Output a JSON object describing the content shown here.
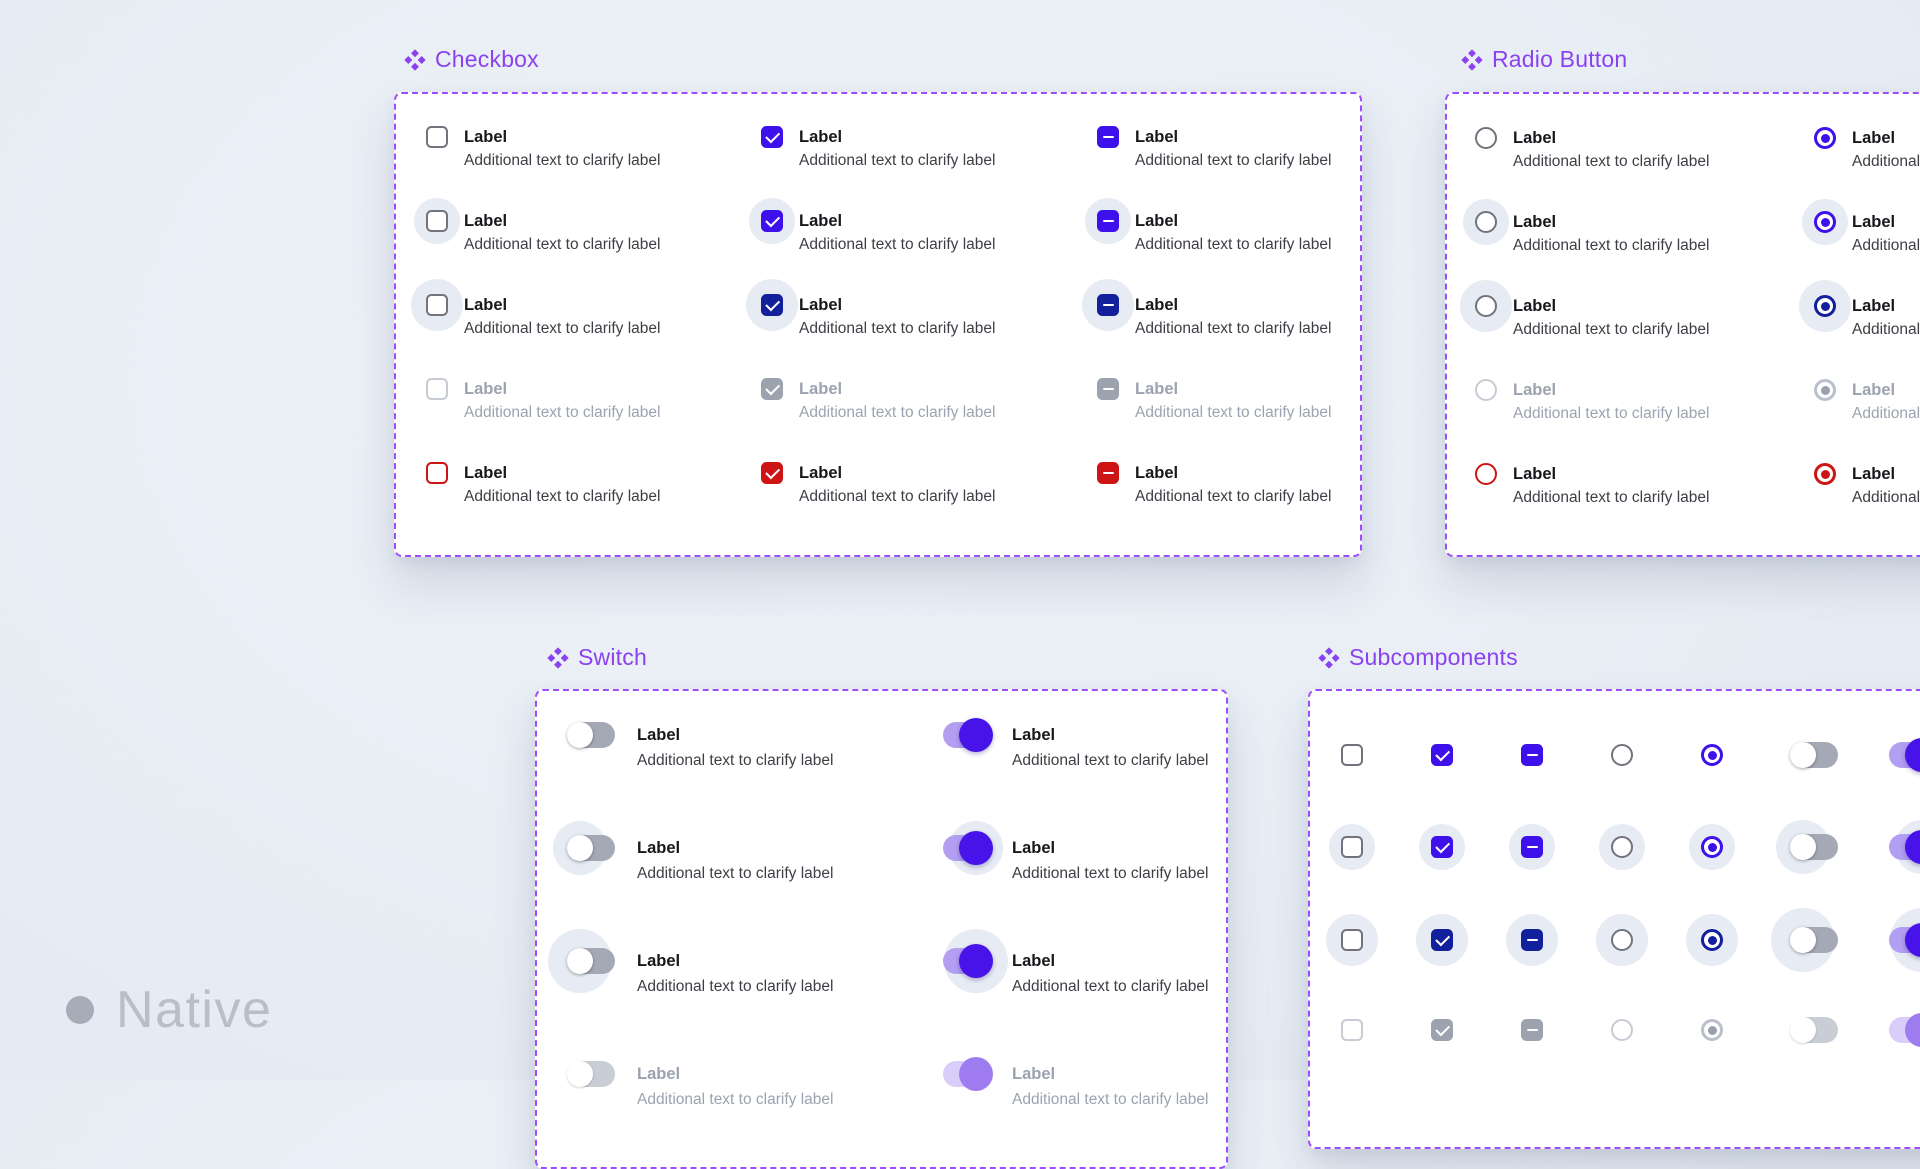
{
  "colors": {
    "bg": "#E9EEF5",
    "card": "#FFFFFF",
    "accent-purple": "#8A42F0",
    "dash-purple": "#9B4DFF",
    "primary": "#3D10EC",
    "primary-pressed": "#12209C",
    "error": "#CE1515",
    "halo": "#E7EBF4",
    "control-border": "#73737D",
    "disabled-border": "#C7CBD4",
    "disabled-fill": "#9CA3AF",
    "text": "#17171C",
    "text-secondary": "#3E3E46",
    "text-disabled": "#9CA3AF",
    "track-off": "#A4A9B5",
    "track-on": "#B29FF1",
    "thumb-on": "#4713E9",
    "track-off-disabled": "#C9CDD5",
    "track-on-disabled": "#D9CDF9",
    "thumb-on-disabled": "#9E7CEF",
    "watermark-dot": "#A7ACB9",
    "watermark-text": "#B9BEC9"
  },
  "labels": {
    "label": "Label",
    "description": "Additional text to clarify label"
  },
  "watermark": {
    "brand": "Native"
  },
  "sections": {
    "checkbox": {
      "title": "Checkbox",
      "columns": [
        "unchecked",
        "checked",
        "indeterminate"
      ],
      "rows": [
        "default",
        "hover",
        "pressed",
        "disabled",
        "error"
      ]
    },
    "radio": {
      "title": "Radio Button",
      "columns": [
        "unselected",
        "selected"
      ],
      "rows": [
        "default",
        "hover",
        "pressed",
        "disabled",
        "error"
      ]
    },
    "switch": {
      "title": "Switch",
      "columns": [
        "off",
        "on"
      ],
      "rows": [
        "default",
        "hover",
        "pressed",
        "disabled"
      ]
    },
    "subcomponents": {
      "title": "Subcomponents",
      "columns": [
        "checkbox-unchecked",
        "checkbox-checked",
        "checkbox-indeterminate",
        "radio-unselected",
        "radio-selected",
        "switch-off",
        "switch-on"
      ],
      "rows": [
        "default",
        "hover",
        "pressed",
        "disabled"
      ]
    }
  }
}
